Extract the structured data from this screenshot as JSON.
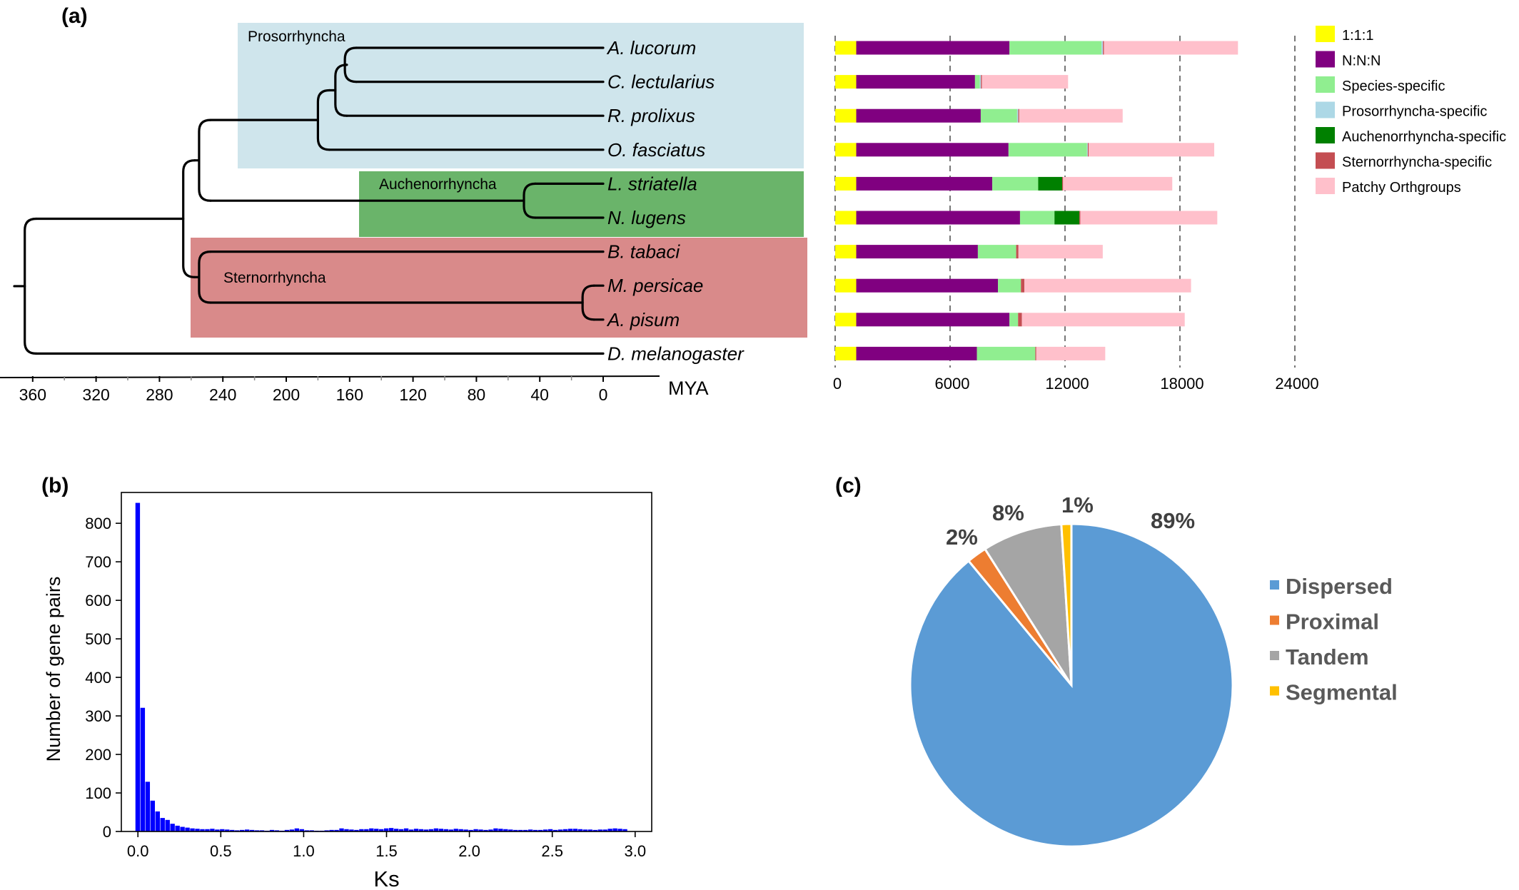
{
  "panel_labels": {
    "a": "(a)",
    "b": "(b)",
    "c": "(c)"
  },
  "chart_data": [
    {
      "panel": "(a)",
      "type": "tree",
      "clades": [
        {
          "name": "Prosorrhyncha",
          "color": "#cfe5ec"
        },
        {
          "name": "Auchenorrhyncha",
          "color": "#6ab46a"
        },
        {
          "name": "Sternorrhyncha",
          "color": "#d98a8a"
        }
      ],
      "taxa": [
        "A. lucorum",
        "C. lectularius",
        "R. prolixus",
        "O. fasciatus",
        "L. striatella",
        "N. lugens",
        "B. tabaci",
        "M. persicae",
        "A. pisum",
        "D. melanogaster"
      ],
      "node_ages_mya": {
        "root": 365,
        "hemiptera": 265,
        "sternorrhyncha": 255,
        "prosorrhyncha_auchenorrhyncha": 255,
        "prosorrhyncha": 180,
        "lucorum_group": 169,
        "lucorum_lectularius": 163,
        "striatella_lugens": 50,
        "persicae_pisum": 13
      },
      "xaxis": {
        "label": "MYA",
        "ticks": [
          360,
          320,
          280,
          240,
          200,
          160,
          120,
          80,
          40,
          0
        ],
        "xlim": [
          380,
          -35
        ]
      }
    },
    {
      "panel": "(a)",
      "type": "bar",
      "orientation": "horizontal",
      "stacked": true,
      "categories": [
        "A. lucorum",
        "C. lectularius",
        "R. prolixus",
        "O. fasciatus",
        "L. striatella",
        "N. lugens",
        "B. tabaci",
        "M. persicae",
        "A. pisum",
        "D. melanogaster"
      ],
      "series": [
        {
          "name": "1:1:1",
          "color": "#ffff00",
          "values": [
            1100,
            1100,
            1100,
            1100,
            1100,
            1100,
            1100,
            1100,
            1100,
            1100
          ]
        },
        {
          "name": "N:N:N",
          "color": "#800080",
          "values": [
            8000,
            6200,
            6500,
            7950,
            7100,
            8550,
            6350,
            7400,
            8000,
            6300
          ]
        },
        {
          "name": "Species-specific",
          "color": "#90ee90",
          "values": [
            4800,
            250,
            1900,
            4100,
            2400,
            1800,
            2000,
            1200,
            450,
            3050
          ]
        },
        {
          "name": "Prosorrhyncha-specific",
          "color": "#add8e6",
          "values": [
            80,
            60,
            60,
            40,
            0,
            0,
            0,
            0,
            0,
            0
          ]
        },
        {
          "name": "Auchenorrhyncha-specific",
          "color": "#008000",
          "values": [
            0,
            0,
            0,
            0,
            1250,
            1300,
            0,
            0,
            0,
            0
          ]
        },
        {
          "name": "Sternorrhyncha-specific",
          "color": "#c44e52",
          "values": [
            50,
            50,
            50,
            50,
            50,
            50,
            120,
            180,
            200,
            50
          ]
        },
        {
          "name": "Patchy Orthgroups",
          "color": "#ffc0cb",
          "values": [
            7000,
            4500,
            5400,
            6550,
            5700,
            7150,
            4400,
            8700,
            8500,
            3600
          ]
        }
      ],
      "xticks": [
        0,
        6000,
        12000,
        18000,
        24000
      ],
      "xlim": [
        0,
        24000
      ],
      "legend_position": "right"
    },
    {
      "panel": "(b)",
      "type": "bar",
      "xlabel": "Ks",
      "ylabel": "Number of gene pairs",
      "bar_color": "#0000ff",
      "bin_width": 0.03,
      "x": [
        0.0,
        0.03,
        0.06,
        0.09,
        0.12,
        0.15,
        0.18,
        0.21,
        0.24,
        0.27,
        0.3,
        0.33,
        0.36,
        0.39,
        0.42,
        0.45,
        0.48,
        0.51,
        0.54,
        0.57,
        0.6,
        0.63,
        0.66,
        0.69,
        0.72,
        0.75,
        0.78,
        0.81,
        0.84,
        0.87,
        0.9,
        0.93,
        0.96,
        0.99,
        1.02,
        1.05,
        1.08,
        1.11,
        1.14,
        1.17,
        1.2,
        1.23,
        1.26,
        1.29,
        1.32,
        1.35,
        1.38,
        1.41,
        1.44,
        1.47,
        1.5,
        1.53,
        1.56,
        1.59,
        1.62,
        1.65,
        1.68,
        1.71,
        1.74,
        1.77,
        1.8,
        1.83,
        1.86,
        1.89,
        1.92,
        1.95,
        1.98,
        2.01,
        2.04,
        2.07,
        2.1,
        2.13,
        2.16,
        2.19,
        2.22,
        2.25,
        2.28,
        2.31,
        2.34,
        2.37,
        2.4,
        2.43,
        2.46,
        2.49,
        2.52,
        2.55,
        2.58,
        2.61,
        2.64,
        2.67,
        2.7,
        2.73,
        2.76,
        2.79,
        2.82,
        2.85,
        2.88,
        2.91,
        2.94
      ],
      "values": [
        853,
        321,
        129,
        80,
        52,
        35,
        30,
        20,
        15,
        12,
        10,
        8,
        7,
        6,
        6,
        7,
        5,
        6,
        5,
        4,
        3,
        4,
        5,
        4,
        3,
        3,
        2,
        4,
        3,
        2,
        4,
        5,
        8,
        6,
        3,
        3,
        2,
        2,
        3,
        4,
        4,
        8,
        6,
        5,
        4,
        6,
        6,
        8,
        7,
        6,
        8,
        9,
        7,
        6,
        8,
        5,
        7,
        6,
        5,
        6,
        8,
        7,
        6,
        5,
        7,
        6,
        5,
        4,
        6,
        5,
        4,
        5,
        8,
        7,
        6,
        5,
        4,
        4,
        4,
        5,
        4,
        4,
        5,
        6,
        4,
        5,
        6,
        7,
        7,
        6,
        5,
        5,
        4,
        5,
        5,
        7,
        8,
        7,
        6
      ],
      "xticks": [
        0.0,
        0.5,
        1.0,
        1.5,
        2.0,
        2.5,
        3.0
      ],
      "xtick_labels": [
        "0.0",
        "0.5",
        "1.0",
        "1.5",
        "2.0",
        "2.5",
        "3.0"
      ],
      "yticks": [
        0,
        100,
        200,
        300,
        400,
        500,
        600,
        700,
        800
      ],
      "xlim": [
        -0.1,
        3.1
      ],
      "ylim": [
        0,
        880
      ]
    },
    {
      "panel": "(c)",
      "type": "pie",
      "labels": [
        "Dispersed",
        "Proximal",
        "Tandem",
        "Segmental"
      ],
      "values": [
        89,
        2,
        8,
        1
      ],
      "value_labels": [
        "89%",
        "2%",
        "8%",
        "1%"
      ],
      "colors": [
        "#5b9bd5",
        "#ed7d31",
        "#a5a5a5",
        "#ffc000"
      ],
      "start_angle": "12 o'clock",
      "direction": "clockwise",
      "legend_position": "right"
    }
  ]
}
